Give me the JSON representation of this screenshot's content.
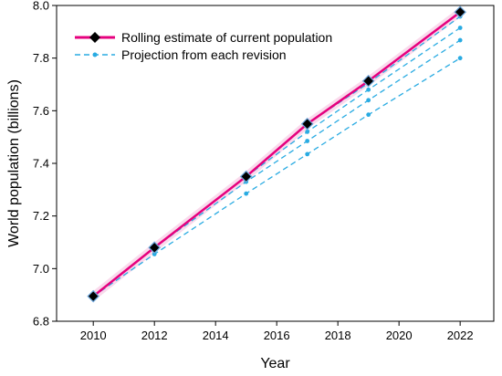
{
  "chart_data": {
    "type": "line",
    "xlabel": "Year",
    "ylabel": "World population (billions)",
    "xlim": [
      2008.8,
      2023.1
    ],
    "ylim": [
      6.8,
      8.0
    ],
    "xticks": [
      2010,
      2012,
      2014,
      2016,
      2018,
      2020,
      2022
    ],
    "yticks": [
      6.8,
      7.0,
      7.2,
      7.4,
      7.6,
      7.8,
      8.0
    ],
    "x_tick_labels": [
      "2010",
      "2012",
      "2014",
      "2016",
      "2018",
      "2020",
      "2022"
    ],
    "y_tick_labels": [
      "6.8",
      "7.0",
      "7.2",
      "7.4",
      "7.6",
      "7.8",
      "8.0"
    ],
    "legend_position": "top-left",
    "grid": false,
    "series": [
      {
        "name": "Rolling estimate of current population",
        "color": "#e6007e",
        "style": "solid",
        "marker": "diamond",
        "x": [
          2010,
          2012,
          2015,
          2017,
          2019,
          2022
        ],
        "y": [
          6.895,
          7.08,
          7.35,
          7.55,
          7.713,
          7.975
        ]
      },
      {
        "name": "Projection from each revision",
        "color": "#29abe2",
        "style": "dashed",
        "marker": "circle",
        "projections": [
          {
            "x": [
              2010,
              2012,
              2015,
              2017,
              2019,
              2022
            ],
            "y": [
              6.895,
              7.055,
              7.285,
              7.435,
              7.585,
              7.8
            ]
          },
          {
            "x": [
              2012,
              2015,
              2017,
              2019,
              2022
            ],
            "y": [
              7.08,
              7.33,
              7.485,
              7.64,
              7.868
            ]
          },
          {
            "x": [
              2015,
              2017,
              2019,
              2022
            ],
            "y": [
              7.35,
              7.52,
              7.68,
              7.915
            ]
          },
          {
            "x": [
              2017,
              2019,
              2022
            ],
            "y": [
              7.55,
              7.705,
              7.958
            ]
          },
          {
            "x": [
              2019,
              2022
            ],
            "y": [
              7.713,
              7.975
            ]
          }
        ]
      }
    ]
  }
}
